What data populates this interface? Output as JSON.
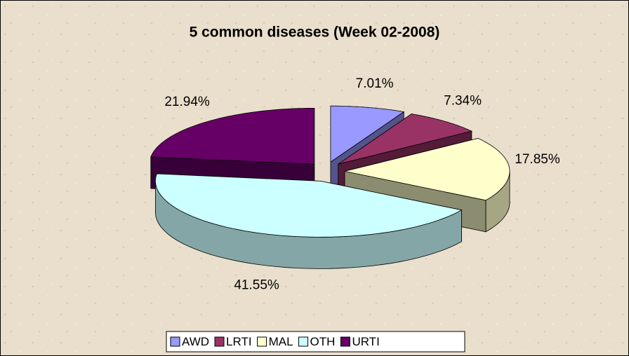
{
  "chart_data": {
    "type": "pie3d",
    "title": "5 common diseases (Week 02-2008)",
    "categories": [
      "AWD",
      "LRTI",
      "MAL",
      "OTH",
      "URTI"
    ],
    "values": [
      7.01,
      7.34,
      17.85,
      41.55,
      21.94
    ],
    "value_labels": [
      "7.01%",
      "7.34%",
      "17.85%",
      "41.55%",
      "21.94%"
    ],
    "colors": [
      "#9999ff",
      "#993366",
      "#ffffcc",
      "#ccffff",
      "#660066"
    ],
    "legend": "bottom"
  }
}
